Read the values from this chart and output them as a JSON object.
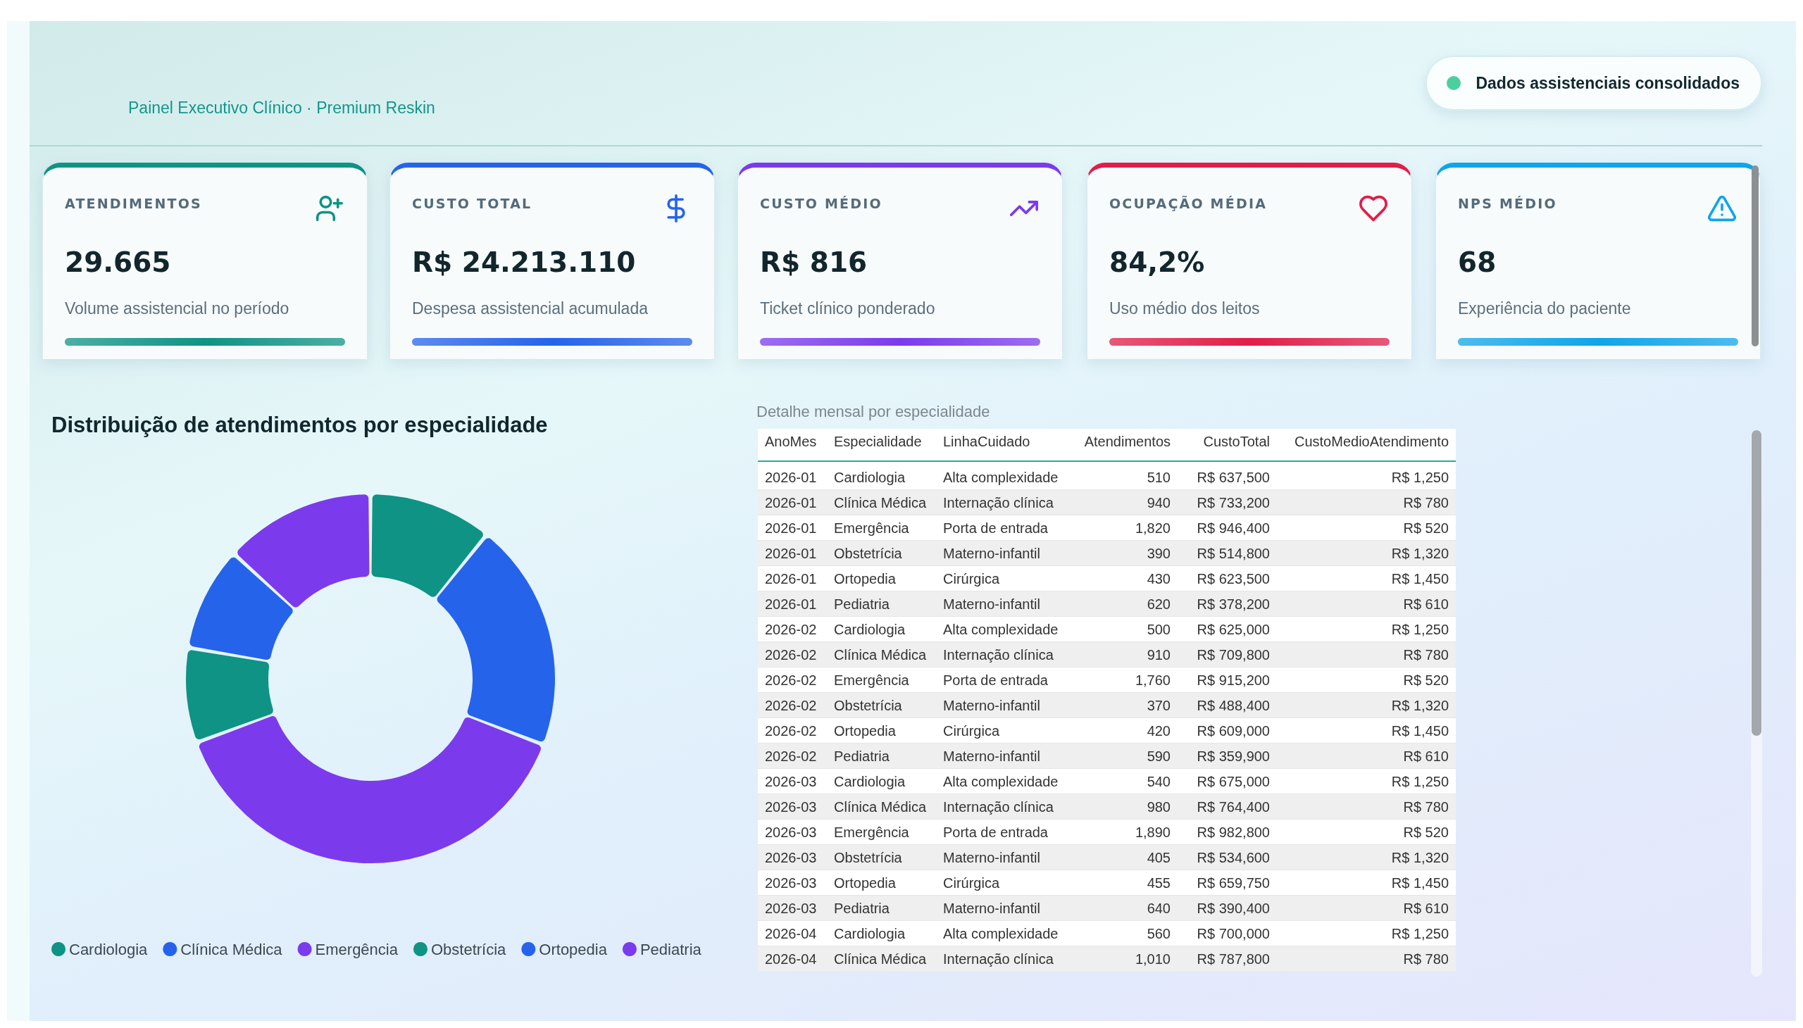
{
  "chart_data": [
    {
      "type": "other",
      "subtitle": "Painel Executivo Clínico · Premium Reskin",
      "annotations": [
        "Dados assistenciais consolidados"
      ]
    },
    {
      "type": "other",
      "title": "ATENDIMENTOS",
      "annotations": [
        "29.665",
        "Volume assistencial no período"
      ],
      "color": "#0e9384"
    },
    {
      "type": "other",
      "title": "CUSTO TOTAL",
      "annotations": [
        "R$ 24.213.110",
        "Despesa assistencial acumulada"
      ],
      "color": "#2563eb"
    },
    {
      "type": "other",
      "title": "CUSTO MÉDIO",
      "annotations": [
        "R$ 816",
        "Ticket clínico ponderado"
      ],
      "color": "#7c3aed"
    },
    {
      "type": "other",
      "title": "OCUPAÇÃO MÉDIA",
      "annotations": [
        "84,2%",
        "Uso médio dos leitos"
      ],
      "color": "#e11d48"
    },
    {
      "type": "other",
      "title": "NPS MÉDIO",
      "annotations": [
        "68",
        "Experiência do paciente"
      ],
      "color": "#0ea5e9"
    },
    {
      "type": "donut",
      "title": "Distribuição de atendimentos por especialidade",
      "categories": [
        "Cardiologia",
        "Clínica Médica",
        "Emergência",
        "Obstetrícia",
        "Ortopedia",
        "Pediatria"
      ],
      "values": [
        10.8,
        20.0,
        38.6,
        8.3,
        9.1,
        13.2
      ],
      "colors": [
        "#0e9384",
        "#2563eb",
        "#7c3aed",
        "#0e9384",
        "#2563eb",
        "#7c3aed"
      ],
      "legend": "bottom"
    },
    {
      "type": "other",
      "title": "Detalhe mensal por especialidade",
      "categories": [
        "AnoMes",
        "Especialidade",
        "LinhaCuidado",
        "Atendimentos",
        "CustoTotal",
        "CustoMedioAtendimento"
      ],
      "cell_labels": [
        [
          "2026-01",
          "Cardiologia",
          "Alta complexidade",
          "510",
          "R$ 637,500",
          "R$ 1,250"
        ],
        [
          "2026-01",
          "Clínica Médica",
          "Internação clínica",
          "940",
          "R$ 733,200",
          "R$ 780"
        ],
        [
          "2026-01",
          "Emergência",
          "Porta de entrada",
          "1,820",
          "R$ 946,400",
          "R$ 520"
        ],
        [
          "2026-01",
          "Obstetrícia",
          "Materno-infantil",
          "390",
          "R$ 514,800",
          "R$ 1,320"
        ],
        [
          "2026-01",
          "Ortopedia",
          "Cirúrgica",
          "430",
          "R$ 623,500",
          "R$ 1,450"
        ],
        [
          "2026-01",
          "Pediatria",
          "Materno-infantil",
          "620",
          "R$ 378,200",
          "R$ 610"
        ],
        [
          "2026-02",
          "Cardiologia",
          "Alta complexidade",
          "500",
          "R$ 625,000",
          "R$ 1,250"
        ],
        [
          "2026-02",
          "Clínica Médica",
          "Internação clínica",
          "910",
          "R$ 709,800",
          "R$ 780"
        ],
        [
          "2026-02",
          "Emergência",
          "Porta de entrada",
          "1,760",
          "R$ 915,200",
          "R$ 520"
        ],
        [
          "2026-02",
          "Obstetrícia",
          "Materno-infantil",
          "370",
          "R$ 488,400",
          "R$ 1,320"
        ],
        [
          "2026-02",
          "Ortopedia",
          "Cirúrgica",
          "420",
          "R$ 609,000",
          "R$ 1,450"
        ],
        [
          "2026-02",
          "Pediatria",
          "Materno-infantil",
          "590",
          "R$ 359,900",
          "R$ 610"
        ],
        [
          "2026-03",
          "Cardiologia",
          "Alta complexidade",
          "540",
          "R$ 675,000",
          "R$ 1,250"
        ],
        [
          "2026-03",
          "Clínica Médica",
          "Internação clínica",
          "980",
          "R$ 764,400",
          "R$ 780"
        ],
        [
          "2026-03",
          "Emergência",
          "Porta de entrada",
          "1,890",
          "R$ 982,800",
          "R$ 520"
        ],
        [
          "2026-03",
          "Obstetrícia",
          "Materno-infantil",
          "405",
          "R$ 534,600",
          "R$ 1,320"
        ],
        [
          "2026-03",
          "Ortopedia",
          "Cirúrgica",
          "455",
          "R$ 659,750",
          "R$ 1,450"
        ],
        [
          "2026-03",
          "Pediatria",
          "Materno-infantil",
          "640",
          "R$ 390,400",
          "R$ 610"
        ],
        [
          "2026-04",
          "Cardiologia",
          "Alta complexidade",
          "560",
          "R$ 700,000",
          "R$ 1,250"
        ],
        [
          "2026-04",
          "Clínica Médica",
          "Internação clínica",
          "1,010",
          "R$ 787,800",
          "R$ 780"
        ]
      ]
    }
  ]
}
